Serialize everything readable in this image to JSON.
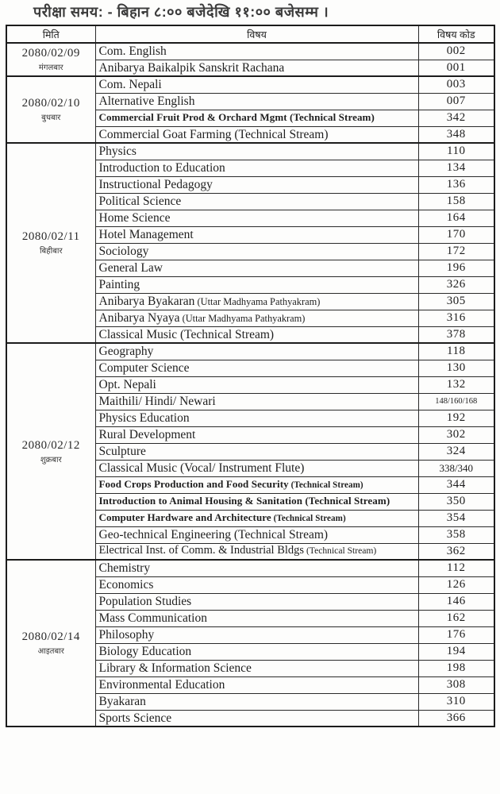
{
  "title": "परीक्षा समय: - बिहान ८:०० बजेदेखि ११:०० बजेसम्म ।",
  "table": {
    "headers": {
      "date": "मिति",
      "subject": "विषय",
      "code": "विषय कोड"
    },
    "groups": [
      {
        "date": "2080/02/09",
        "day": "मंगलबार",
        "rows": [
          {
            "subject": "Com. English",
            "code": "002"
          },
          {
            "subject": "Anibarya Baikalpik Sanskrit Rachana",
            "code": "001"
          }
        ]
      },
      {
        "date": "2080/02/10",
        "day": "बुधबार",
        "rows": [
          {
            "subject": "Com. Nepali",
            "code": "003"
          },
          {
            "subject": "Alternative English",
            "code": "007"
          },
          {
            "subject": "Commercial Fruit Prod & Orchard Mgmt  (Technical Stream)",
            "code": "342",
            "style": "small"
          },
          {
            "subject": "Commercial Goat Farming (Technical Stream)",
            "code": "348"
          }
        ]
      },
      {
        "date": "2080/02/11",
        "day": "बिहीबार",
        "rows": [
          {
            "subject": "Physics",
            "code": "110"
          },
          {
            "subject": "Introduction to Education",
            "code": "134"
          },
          {
            "subject": "Instructional Pedagogy",
            "code": "136"
          },
          {
            "subject": "Political Science",
            "code": "158"
          },
          {
            "subject": "Home Science",
            "code": "164"
          },
          {
            "subject": "Hotel Management",
            "code": "170"
          },
          {
            "subject": "Sociology",
            "code": "172"
          },
          {
            "subject": "General Law",
            "code": "196"
          },
          {
            "subject": "Painting",
            "code": "326"
          },
          {
            "subject": "Anibarya Byakaran",
            "note": "(Uttar Madhyama Pathyakram)",
            "code": "305"
          },
          {
            "subject": "Anibarya Nyaya",
            "note": "(Uttar Madhyama Pathyakram)",
            "code": "316"
          },
          {
            "subject": "Classical Music (Technical Stream)",
            "code": "378"
          }
        ]
      },
      {
        "date": "2080/02/12",
        "day": "शुक्रबार",
        "rows": [
          {
            "subject": "Geography",
            "code": "118"
          },
          {
            "subject": "Computer Science",
            "code": "130"
          },
          {
            "subject": "Opt. Nepali",
            "code": "132"
          },
          {
            "subject": "Maithili/ Hindi/ Newari",
            "code": "148/160/168",
            "code_size": "xs"
          },
          {
            "subject": "Physics Education",
            "code": "192"
          },
          {
            "subject": "Rural Development",
            "code": "302"
          },
          {
            "subject": "Sculpture",
            "code": "324"
          },
          {
            "subject": "Classical Music (Vocal/ Instrument  Flute)",
            "code": "338/340",
            "code_size": "sm"
          },
          {
            "subject": "Food Crops Production and Food Security",
            "note": "(Technical Stream)",
            "code": "344",
            "style": "small"
          },
          {
            "subject": "Introduction to Animal Housing & Sanitation (Technical Stream)",
            "code": "350",
            "style": "small"
          },
          {
            "subject": "Computer Hardware and Architecture",
            "note": "(Technical Stream)",
            "code": "354",
            "style": "small"
          },
          {
            "subject": "Geo-technical Engineering (Technical Stream)",
            "code": "358"
          },
          {
            "subject": "Electrical Inst. of Comm. & Industrial Bldgs",
            "note": "(Technical Stream)",
            "code": "362",
            "style": "medium"
          }
        ]
      },
      {
        "date": "2080/02/14",
        "day": "आइतबार",
        "rows": [
          {
            "subject": "Chemistry",
            "code": "112"
          },
          {
            "subject": "Economics",
            "code": "126"
          },
          {
            "subject": "Population Studies",
            "code": "146"
          },
          {
            "subject": "Mass Communication",
            "code": "162"
          },
          {
            "subject": "Philosophy",
            "code": "176"
          },
          {
            "subject": "Biology Education",
            "code": "194"
          },
          {
            "subject": "Library & Information Science",
            "code": "198"
          },
          {
            "subject": "Environmental Education",
            "code": "308"
          },
          {
            "subject": "Byakaran",
            "code": "310"
          },
          {
            "subject": "Sports Science",
            "code": "366"
          }
        ]
      }
    ]
  },
  "colors": {
    "background": "#fdfdfc",
    "border": "#1c1c1c",
    "text": "#1f1f1f",
    "title_text": "#3c3c3c"
  }
}
